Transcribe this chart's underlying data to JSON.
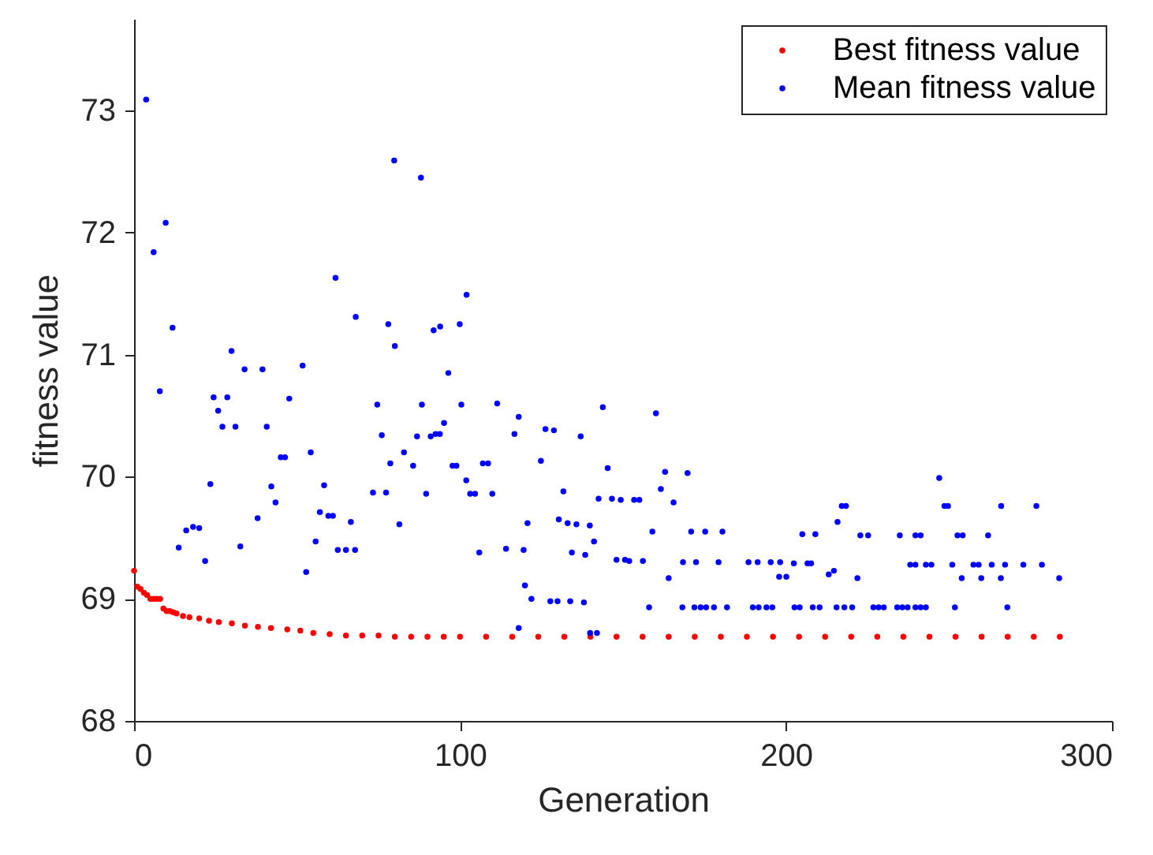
{
  "chart_data": {
    "type": "scatter",
    "xlabel": "Generation",
    "ylabel": "fitness value",
    "xlim": [
      0,
      300
    ],
    "xticks": [
      0,
      100,
      200,
      300
    ],
    "ylim": [
      68,
      73.75
    ],
    "yticks": [
      68,
      69,
      70,
      71,
      72,
      73
    ],
    "grid": false,
    "legend": "top right",
    "marker": "circle",
    "series": [
      {
        "name": "Best fitness value",
        "color": "#ff0000",
        "x": [
          0,
          1,
          2,
          3,
          4,
          5,
          6,
          7,
          8,
          9,
          10,
          11,
          12,
          13,
          15,
          17,
          20,
          23,
          26,
          30,
          34,
          38,
          42,
          47,
          51,
          55,
          60,
          65,
          70,
          75,
          80,
          85,
          90,
          95,
          100,
          108,
          116,
          124,
          132,
          140,
          148,
          156,
          164,
          172,
          180,
          188,
          196,
          204,
          212,
          220,
          228,
          236,
          244,
          252,
          260,
          268,
          276,
          284
        ],
        "values": [
          69.23,
          69.1,
          69.08,
          69.05,
          69.03,
          69.0,
          69.0,
          69.0,
          69.0,
          68.92,
          68.9,
          68.9,
          68.89,
          68.88,
          68.86,
          68.85,
          68.84,
          68.82,
          68.81,
          68.8,
          68.78,
          68.77,
          68.76,
          68.75,
          68.74,
          68.72,
          68.71,
          68.7,
          68.7,
          68.7,
          68.69,
          68.69,
          68.69,
          68.69,
          68.69,
          68.69,
          68.69,
          68.69,
          68.69,
          68.69,
          68.69,
          68.69,
          68.69,
          68.69,
          68.69,
          68.69,
          68.69,
          68.69,
          68.69,
          68.69,
          68.69,
          68.69,
          68.69,
          68.69,
          68.69,
          68.69,
          68.69,
          68.69
        ]
      },
      {
        "name": "Mean fitness value",
        "color": "#0000ff",
        "x": [
          3.7,
          6.0,
          7.9,
          9.7,
          11.8,
          13.7,
          16.0,
          18.1,
          20.0,
          21.8,
          23.4,
          24.4,
          25.8,
          27.1,
          28.6,
          29.9,
          31.1,
          32.6,
          33.9,
          37.9,
          39.4,
          40.7,
          42.1,
          43.4,
          45.0,
          46.3,
          47.6,
          51.7,
          52.8,
          54.2,
          55.7,
          57.0,
          58.3,
          59.6,
          61.0,
          61.8,
          62.5,
          65.0,
          66.5,
          67.8,
          68.0,
          73.3,
          74.6,
          76.0,
          77.3,
          78.0,
          78.6,
          79.8,
          80.0,
          81.4,
          82.8,
          85.6,
          86.8,
          88.0,
          88.3,
          89.6,
          91.0,
          91.9,
          92.5,
          93.8,
          93.9,
          95.1,
          96.4,
          97.7,
          98.9,
          99.9,
          100.4,
          101.9,
          102.0,
          103.1,
          104.6,
          105.9,
          107.0,
          108.6,
          109.9,
          111.4,
          114.1,
          116.7,
          118.0,
          118.0,
          119.5,
          119.9,
          120.7,
          121.9,
          124.8,
          126.2,
          127.7,
          128.8,
          129.9,
          130.3,
          131.7,
          133.0,
          133.8,
          134.3,
          135.7,
          137.0,
          138.0,
          138.4,
          139.8,
          139.9,
          141.1,
          142.0,
          142.5,
          143.8,
          145.3,
          146.6,
          148.0,
          149.3,
          150.6,
          151.9,
          153.4,
          155.0,
          156.1,
          158.0,
          159.0,
          160.1,
          161.6,
          162.9,
          164.0,
          165.5,
          168.2,
          168.4,
          169.8,
          170.9,
          171.9,
          172.4,
          173.8,
          175.2,
          175.5,
          177.9,
          179.3,
          180.5,
          181.9,
          188.5,
          189.8,
          191.3,
          191.6,
          194.0,
          195.3,
          195.8,
          197.9,
          198.2,
          200.1,
          202.4,
          202.6,
          204.2,
          205.0,
          206.6,
          207.7,
          208.2,
          209.0,
          210.3,
          213.1,
          214.7,
          215.5,
          215.8,
          217.1,
          217.9,
          218.4,
          220.3,
          221.9,
          222.8,
          225.2,
          226.8,
          228.4,
          230.0,
          234.1,
          234.9,
          235.7,
          237.3,
          238.1,
          239.7,
          239.7,
          239.7,
          241.3,
          241.3,
          242.9,
          242.9,
          244.6,
          247.0,
          248.6,
          249.7,
          251.0,
          251.8,
          252.6,
          253.9,
          254.2,
          257.5,
          259.1,
          259.9,
          262.0,
          263.1,
          265.9,
          266.0,
          267.2,
          267.9,
          272.8,
          276.8,
          278.5,
          283.8
        ],
        "values": [
          73.09,
          71.84,
          70.7,
          72.08,
          71.22,
          69.42,
          69.56,
          69.59,
          69.58,
          69.31,
          69.94,
          70.65,
          70.54,
          70.41,
          70.65,
          71.03,
          70.41,
          69.43,
          70.88,
          69.66,
          70.88,
          70.41,
          69.92,
          69.79,
          70.16,
          70.16,
          70.64,
          70.91,
          69.22,
          70.2,
          69.47,
          69.71,
          69.93,
          69.68,
          69.68,
          71.63,
          69.4,
          69.4,
          69.63,
          69.4,
          71.31,
          69.87,
          70.59,
          70.34,
          69.87,
          71.25,
          70.11,
          72.59,
          71.07,
          69.61,
          70.2,
          70.09,
          70.33,
          72.45,
          70.59,
          69.86,
          70.33,
          71.2,
          70.35,
          70.35,
          71.23,
          70.44,
          70.85,
          70.09,
          70.09,
          71.25,
          70.59,
          69.97,
          71.49,
          69.86,
          69.86,
          69.38,
          70.11,
          70.11,
          69.86,
          70.6,
          69.41,
          70.35,
          68.76,
          70.49,
          69.4,
          69.11,
          69.62,
          69.0,
          70.13,
          70.39,
          68.98,
          70.38,
          68.98,
          69.65,
          69.88,
          69.62,
          68.98,
          69.38,
          69.61,
          70.33,
          68.97,
          69.36,
          69.6,
          68.72,
          69.47,
          68.72,
          69.82,
          70.57,
          70.07,
          69.82,
          69.32,
          69.81,
          69.32,
          69.31,
          69.81,
          69.81,
          69.31,
          68.93,
          69.55,
          70.52,
          69.9,
          70.04,
          69.17,
          69.79,
          68.93,
          69.3,
          70.03,
          69.55,
          68.93,
          69.3,
          68.93,
          69.55,
          68.93,
          68.93,
          69.3,
          69.55,
          68.93,
          69.3,
          68.93,
          69.3,
          68.93,
          68.93,
          69.3,
          68.93,
          69.18,
          69.3,
          69.18,
          69.29,
          68.93,
          68.93,
          69.53,
          69.29,
          69.29,
          68.93,
          69.53,
          68.93,
          69.2,
          69.23,
          68.93,
          69.63,
          69.76,
          68.93,
          69.76,
          68.93,
          69.17,
          69.52,
          69.52,
          68.93,
          68.93,
          68.93,
          68.93,
          69.52,
          68.93,
          68.93,
          69.28,
          68.93,
          69.28,
          69.52,
          68.93,
          69.52,
          68.93,
          69.28,
          69.28,
          69.99,
          69.76,
          69.76,
          69.28,
          68.93,
          69.52,
          69.17,
          69.52,
          69.28,
          69.28,
          69.17,
          69.52,
          69.28,
          69.17,
          69.76,
          69.28,
          68.93,
          69.28,
          69.76,
          69.28,
          69.17
        ]
      }
    ]
  }
}
